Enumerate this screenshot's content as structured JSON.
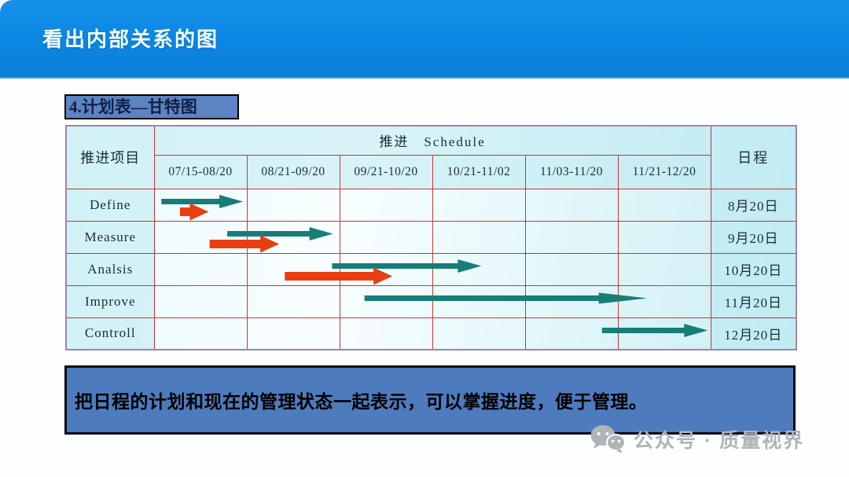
{
  "header": {
    "title": "看出内部关系的图"
  },
  "slide": {
    "section_title": "4.计划表—甘特图",
    "note": "把日程的计划和现在的管理状态一起表示，可以掌握进度，便于管理。"
  },
  "gantt": {
    "corner_label": "推进项目",
    "schedule_label": "推进　Schedule",
    "duedate_label": "日程",
    "periods": [
      "07/15-08/20",
      "08/21-09/20",
      "09/21-10/20",
      "10/21-11/02",
      "11/03-11/20",
      "11/21-12/20"
    ],
    "tasks": [
      {
        "name": "Define",
        "due": "8月20日"
      },
      {
        "name": "Measure",
        "due": "9月20日"
      },
      {
        "name": "Analsis",
        "due": "10月20日"
      },
      {
        "name": "Improve",
        "due": "11月20日"
      },
      {
        "name": "Controll",
        "due": "12月20日"
      }
    ]
  },
  "chart_data": {
    "type": "bar",
    "subtype": "gantt",
    "title": "推进 Schedule",
    "categories": [
      "Define",
      "Measure",
      "Analsis",
      "Improve",
      "Controll"
    ],
    "x_periods": [
      "07/15-08/20",
      "08/21-09/20",
      "09/21-10/20",
      "10/21-11/02",
      "11/03-11/20",
      "11/21-12/20"
    ],
    "x_unit": "period-column (0 = start of 07/15-08/20, 6 = end of 11/21-12/20)",
    "due_dates": [
      "8月20日",
      "9月20日",
      "10月20日",
      "11月20日",
      "12月20日"
    ],
    "legend_position": "none",
    "grid": true,
    "series": [
      {
        "name": "schedule-arrow",
        "color": "#177d78",
        "spans": [
          [
            0.07,
            0.95
          ],
          [
            0.78,
            1.92
          ],
          [
            1.91,
            3.52
          ],
          [
            2.26,
            5.31
          ],
          [
            4.82,
            5.96
          ]
        ]
      },
      {
        "name": "progress-arrow",
        "color": "#e83e11",
        "spans": [
          [
            0.27,
            0.58
          ],
          [
            0.59,
            1.34
          ],
          [
            1.4,
            2.56
          ],
          null,
          null
        ]
      }
    ]
  },
  "watermark": {
    "text": "公众号 · 质量视界"
  },
  "colors": {
    "banner_blue": "#0b86e2",
    "table_bg_cyan": "#d6f2f7",
    "grid_red": "#c93535",
    "table_outer_border": "#a084a8",
    "title_chip_blue": "#5c83c3",
    "note_box_blue": "#4d7bbd",
    "arrow_teal": "#177d78",
    "arrow_red": "#e83e11",
    "watermark_gray": "#aeb4b7"
  }
}
